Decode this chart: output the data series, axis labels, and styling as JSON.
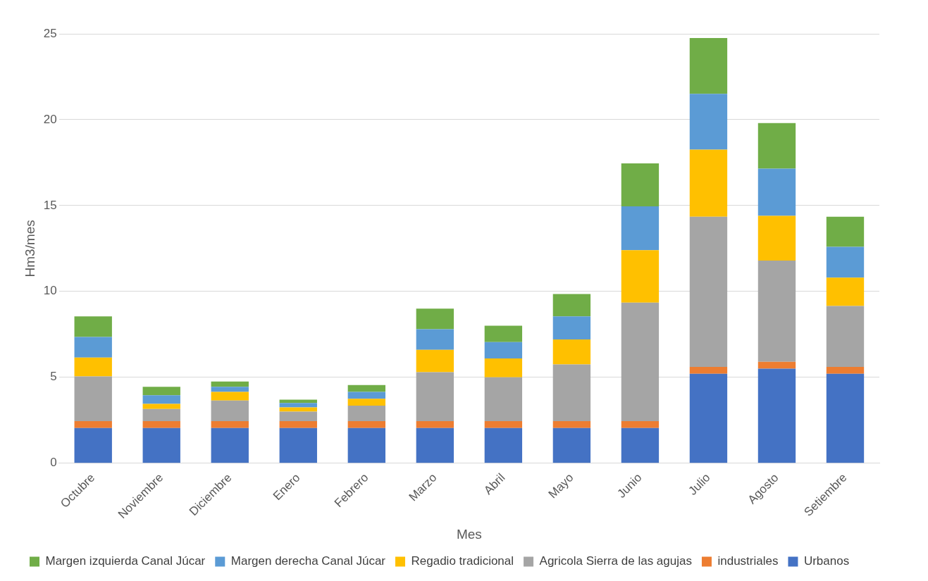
{
  "chart_data": {
    "type": "bar",
    "stacked": true,
    "xlabel": "Mes",
    "ylabel": "Hm3/mes",
    "categories": [
      "Octubre",
      "Noviembre",
      "Diciembre",
      "Enero",
      "Febrero",
      "Marzo",
      "Abril",
      "Mayo",
      "Junio",
      "Julio",
      "Agosto",
      "Setiembre"
    ],
    "series": [
      {
        "name": "Urbanos",
        "color": "#4472c4",
        "values": [
          2.05,
          2.05,
          2.05,
          2.05,
          2.05,
          2.05,
          2.05,
          2.05,
          2.05,
          5.2,
          5.5,
          5.2
        ]
      },
      {
        "name": "industriales",
        "color": "#ed7d31",
        "values": [
          0.4,
          0.4,
          0.4,
          0.4,
          0.4,
          0.4,
          0.4,
          0.4,
          0.4,
          0.4,
          0.4,
          0.4
        ]
      },
      {
        "name": "Agricola Sierra de las agujas",
        "color": "#a5a5a5",
        "values": [
          2.6,
          0.7,
          1.2,
          0.55,
          0.9,
          2.85,
          2.55,
          3.3,
          6.9,
          8.75,
          5.9,
          3.55
        ]
      },
      {
        "name": "Regadio tradicional",
        "color": "#ffc000",
        "values": [
          1.1,
          0.3,
          0.5,
          0.25,
          0.4,
          1.3,
          1.1,
          1.45,
          3.05,
          3.9,
          2.6,
          1.65
        ]
      },
      {
        "name": "Margen derecha Canal Júcar",
        "color": "#5b9bd5",
        "values": [
          1.2,
          0.5,
          0.3,
          0.25,
          0.4,
          1.2,
          0.95,
          1.35,
          2.55,
          3.25,
          2.75,
          1.8
        ]
      },
      {
        "name": "Margen izquierda Canal Júcar",
        "color": "#70ad47",
        "values": [
          1.2,
          0.5,
          0.3,
          0.2,
          0.4,
          1.2,
          0.95,
          1.3,
          2.5,
          3.25,
          2.65,
          1.75
        ]
      }
    ],
    "ylim": [
      0,
      25
    ],
    "yticks": [
      0,
      5,
      10,
      15,
      20,
      25
    ],
    "grid": "y",
    "legend": "bottom"
  }
}
